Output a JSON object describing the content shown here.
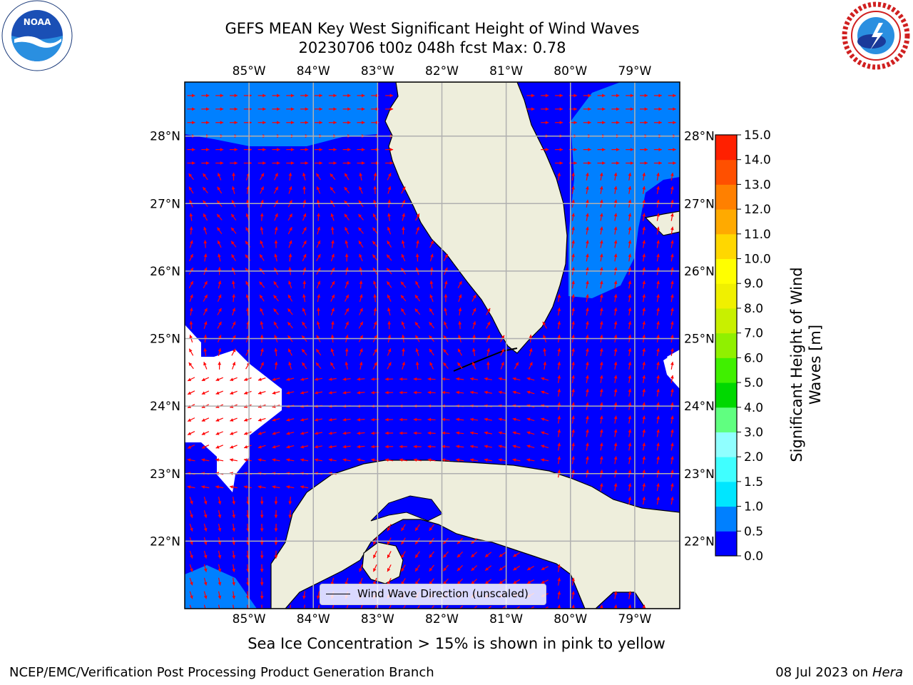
{
  "title": {
    "line1": "GEFS MEAN Key West Significant Height of Wind Waves",
    "line2": "20230706 t00z 048h fcst   Max: 0.78"
  },
  "logos": {
    "left": {
      "icon": "noaa-logo",
      "text": "NOAA"
    },
    "right": {
      "icon": "nws-logo",
      "text": "NATIONAL WEATHER SERVICE"
    }
  },
  "map": {
    "lon_labels": [
      "85°W",
      "84°W",
      "83°W",
      "82°W",
      "81°W",
      "80°W",
      "79°W"
    ],
    "lat_labels": [
      "28°N",
      "27°N",
      "26°N",
      "25°N",
      "24°N",
      "23°N",
      "22°N"
    ],
    "lon_range": [
      -86.0,
      -78.3
    ],
    "lat_range": [
      21.0,
      28.8
    ],
    "colors": {
      "water_low": "#0000ff",
      "water_mid": "#0080ff",
      "land": "#eeeedc",
      "arrow": "#ff0000",
      "grid": "#b0b0b0"
    },
    "legend_label": "Wind Wave Direction (unscaled)"
  },
  "colorbar": {
    "label": "Significant Height of Wind Waves [m]",
    "ticks": [
      "0.0",
      "0.5",
      "1.0",
      "1.5",
      "2.0",
      "3.0",
      "4.0",
      "5.0",
      "6.0",
      "7.0",
      "8.0",
      "9.0",
      "10.0",
      "11.0",
      "12.0",
      "13.0",
      "14.0",
      "15.0"
    ],
    "colors": [
      "#0000ff",
      "#0080ff",
      "#00e6ff",
      "#40ffff",
      "#90ffff",
      "#60ff80",
      "#00d800",
      "#40f000",
      "#90f000",
      "#c8f000",
      "#f0f000",
      "#ffff00",
      "#ffd700",
      "#ffaa00",
      "#ff8000",
      "#ff5000",
      "#ff2000"
    ]
  },
  "caption": "Sea Ice Concentration > 15% is shown in pink to yellow",
  "footer": {
    "left": "NCEP/EMC/Verification Post Processing Product Generation Branch",
    "right_date": "08 Jul 2023 on ",
    "right_host": "Hera"
  }
}
